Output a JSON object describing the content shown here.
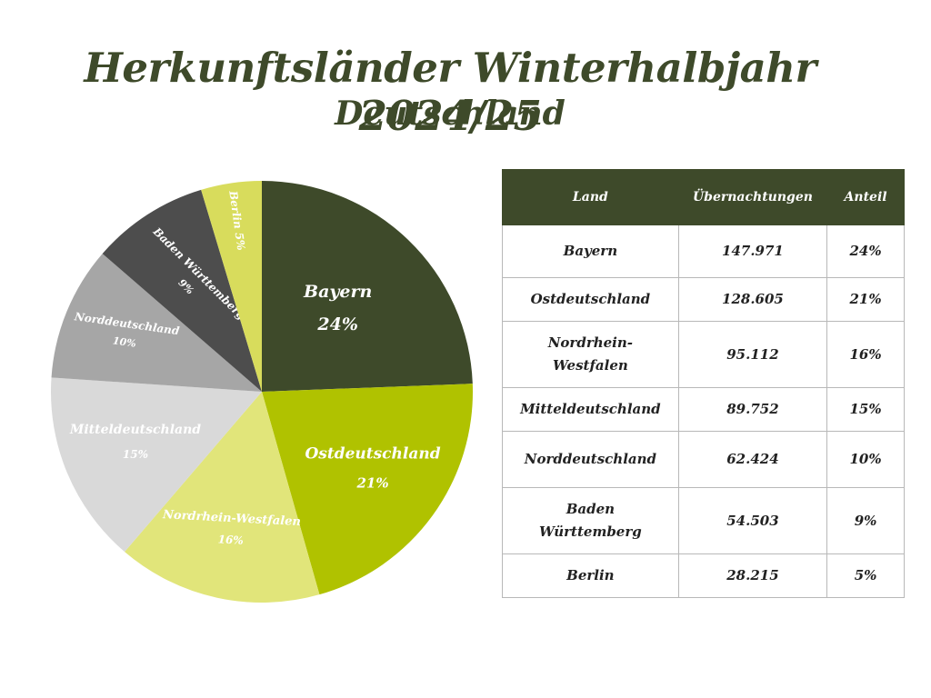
{
  "header": {
    "title": "Herkunftsländer Winterhalbjahr 2024/25",
    "subtitle": "Deutschland"
  },
  "table": {
    "columns": [
      "Land",
      "Übernachtungen",
      "Anteil"
    ],
    "rows": [
      {
        "land": "Bayern",
        "uebernachtungen": "147.971",
        "anteil": "24%"
      },
      {
        "land": "Ostdeutschland",
        "uebernachtungen": "128.605",
        "anteil": "21%"
      },
      {
        "land": "Nordrhein-Westfalen",
        "uebernachtungen": "95.112",
        "anteil": "16%"
      },
      {
        "land": "Mitteldeutschland",
        "uebernachtungen": "89.752",
        "anteil": "15%"
      },
      {
        "land": "Norddeutschland",
        "uebernachtungen": "62.424",
        "anteil": "10%"
      },
      {
        "land": "Baden Württemberg",
        "uebernachtungen": "54.503",
        "anteil": "9%"
      },
      {
        "land": "Berlin",
        "uebernachtungen": "28.215",
        "anteil": "5%"
      }
    ]
  },
  "chart_data": {
    "type": "pie",
    "title": "Herkunftsländer Winterhalbjahr 2024/25",
    "subtitle": "Deutschland",
    "legend": "none",
    "slices": [
      {
        "label": "Bayern",
        "value": 147971,
        "percent_label": "24%",
        "color": "#3e4a2a"
      },
      {
        "label": "Ostdeutschland",
        "value": 128605,
        "percent_label": "21%",
        "color": "#b0c200"
      },
      {
        "label": "Nordrhein-Westfalen",
        "value": 95112,
        "percent_label": "16%",
        "color": "#e1e57a"
      },
      {
        "label": "Mitteldeutschland",
        "value": 89752,
        "percent_label": "15%",
        "color": "#d9d9d9"
      },
      {
        "label": "Norddeutschland",
        "value": 62424,
        "percent_label": "10%",
        "color": "#a6a6a6"
      },
      {
        "label": "Baden Württemberg",
        "value": 54503,
        "percent_label": "9%",
        "color": "#4d4d4d"
      },
      {
        "label": "Berlin",
        "value": 28215,
        "percent_label": "5%",
        "color": "#d8dc5c"
      }
    ]
  }
}
